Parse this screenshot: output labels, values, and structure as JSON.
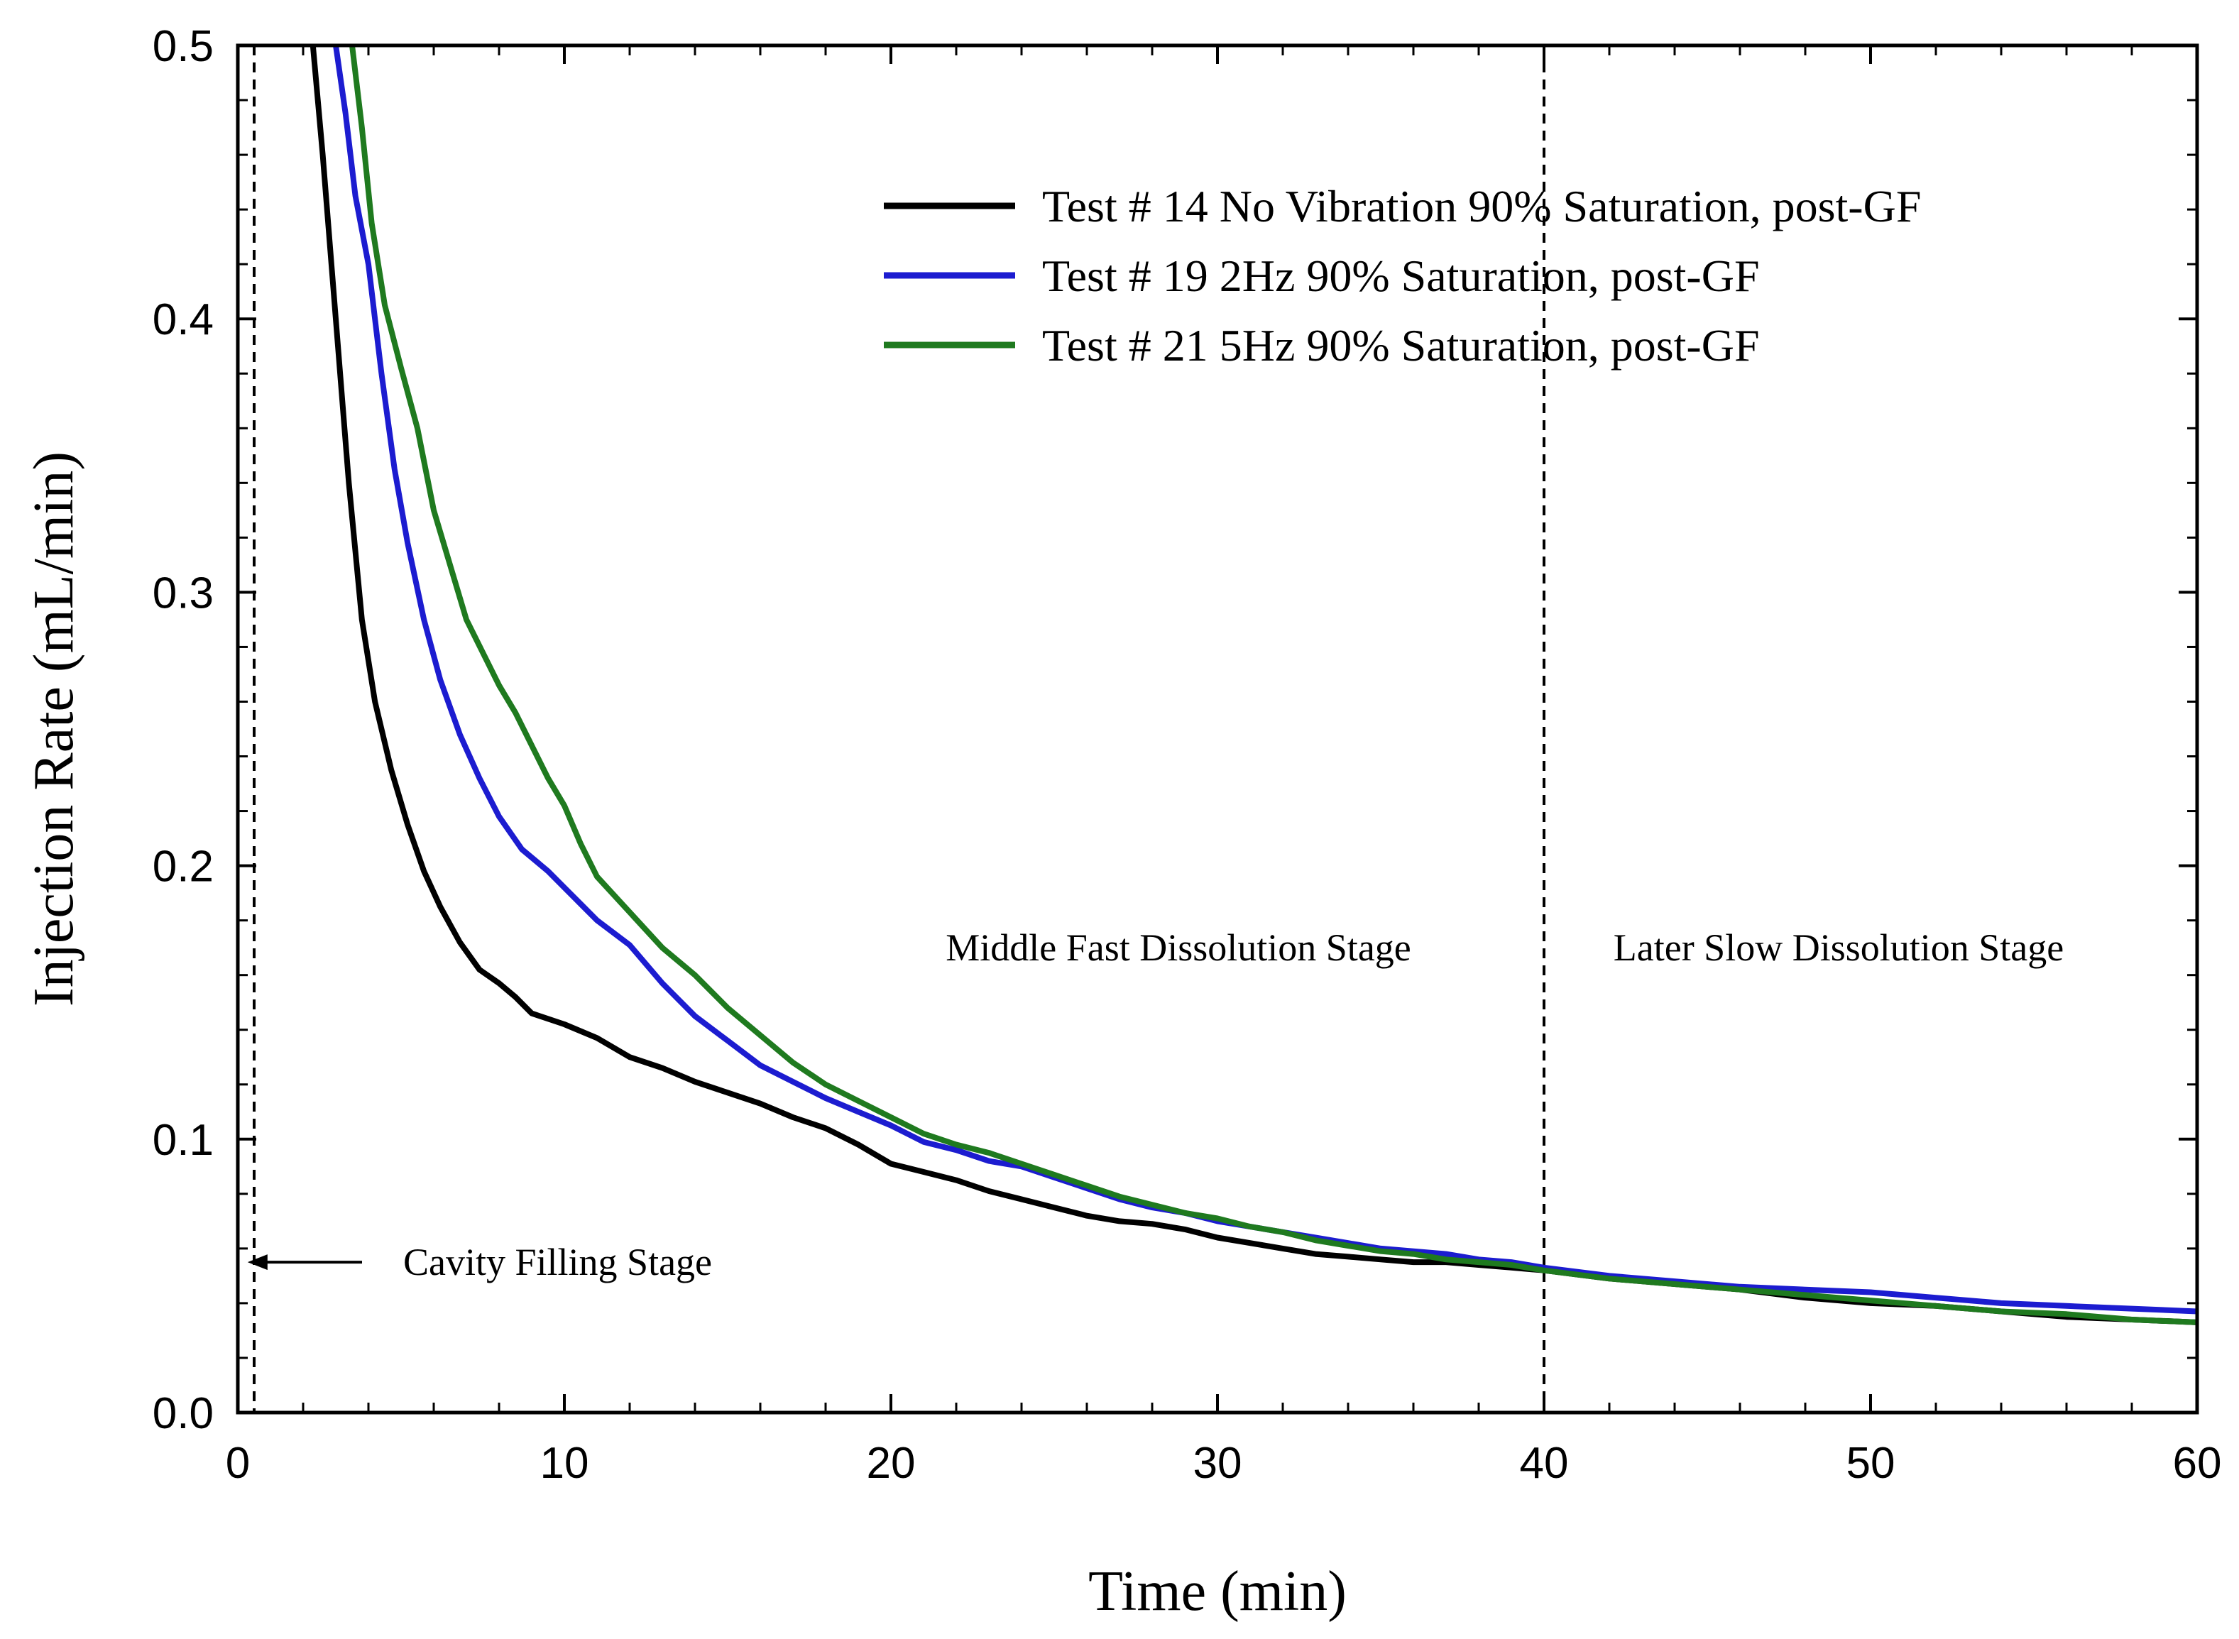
{
  "chart_data": {
    "type": "line",
    "title": "",
    "xlabel": "Time (min)",
    "ylabel": "Injection Rate (mL/min)",
    "xlim": [
      0,
      60
    ],
    "ylim": [
      0,
      0.5
    ],
    "x_ticks": [
      0,
      10,
      20,
      30,
      40,
      50,
      60
    ],
    "x_tick_labels": [
      "0",
      "10",
      "20",
      "30",
      "40",
      "50",
      "60"
    ],
    "y_ticks": [
      0,
      0.1,
      0.2,
      0.3,
      0.4,
      0.5
    ],
    "y_tick_labels": [
      "0.0",
      "0.1",
      "0.2",
      "0.3",
      "0.4",
      "0.5"
    ],
    "grid": false,
    "legend_position": "top-right",
    "vertical_lines": [
      0.5,
      40
    ],
    "annotations": {
      "cavity": "Cavity Filling Stage",
      "middle": "Middle Fast Dissolution Stage",
      "later": "Later Slow Dissolution Stage"
    },
    "series": [
      {
        "name": "Test # 14 No Vibration 90% Saturation, post-GF",
        "color": "#000000",
        "x": [
          2.3,
          2.6,
          3.0,
          3.4,
          3.8,
          4.2,
          4.7,
          5.2,
          5.7,
          6.2,
          6.8,
          7.4,
          8.0,
          8.5,
          9.0,
          10,
          11,
          12,
          13,
          14,
          15,
          16,
          17,
          18,
          19,
          20,
          21,
          22,
          23,
          24,
          25,
          26,
          27,
          28,
          29,
          30,
          31,
          32,
          33,
          34,
          35,
          36,
          37,
          38,
          39,
          40,
          42,
          44,
          46,
          48,
          50,
          52,
          54,
          56,
          58,
          60
        ],
        "y": [
          0.5,
          0.46,
          0.4,
          0.34,
          0.29,
          0.26,
          0.235,
          0.215,
          0.198,
          0.185,
          0.172,
          0.162,
          0.157,
          0.152,
          0.146,
          0.142,
          0.137,
          0.13,
          0.126,
          0.121,
          0.117,
          0.113,
          0.108,
          0.104,
          0.098,
          0.091,
          0.088,
          0.085,
          0.081,
          0.078,
          0.075,
          0.072,
          0.07,
          0.069,
          0.067,
          0.064,
          0.062,
          0.06,
          0.058,
          0.057,
          0.056,
          0.055,
          0.055,
          0.054,
          0.053,
          0.052,
          0.049,
          0.047,
          0.045,
          0.042,
          0.04,
          0.039,
          0.037,
          0.035,
          0.034,
          0.033
        ]
      },
      {
        "name": "Test # 19 2Hz 90% Saturation, post-GF",
        "color": "#1c1cd0",
        "x": [
          3.0,
          3.3,
          3.6,
          4.0,
          4.4,
          4.8,
          5.2,
          5.7,
          6.2,
          6.8,
          7.4,
          8.0,
          8.7,
          9.5,
          10,
          10.5,
          11,
          12,
          13,
          14,
          15,
          16,
          17,
          18,
          19,
          20,
          21,
          22,
          23,
          24,
          25,
          26,
          27,
          28,
          29,
          30,
          31,
          32,
          33,
          34,
          35,
          36,
          37,
          38,
          39,
          40,
          42,
          44,
          46,
          48,
          50,
          52,
          54,
          56,
          58,
          60
        ],
        "y": [
          0.5,
          0.475,
          0.445,
          0.42,
          0.38,
          0.345,
          0.318,
          0.29,
          0.268,
          0.248,
          0.232,
          0.218,
          0.206,
          0.198,
          0.192,
          0.186,
          0.18,
          0.171,
          0.157,
          0.145,
          0.136,
          0.127,
          0.121,
          0.115,
          0.11,
          0.105,
          0.099,
          0.096,
          0.092,
          0.09,
          0.086,
          0.082,
          0.078,
          0.075,
          0.073,
          0.07,
          0.068,
          0.066,
          0.064,
          0.062,
          0.06,
          0.059,
          0.058,
          0.056,
          0.055,
          0.053,
          0.05,
          0.048,
          0.046,
          0.045,
          0.044,
          0.042,
          0.04,
          0.039,
          0.038,
          0.037
        ]
      },
      {
        "name": "Test # 21 5Hz 90% Saturation, post-GF",
        "color": "#1f7a1f",
        "x": [
          3.5,
          3.8,
          4.1,
          4.5,
          5.0,
          5.5,
          6.0,
          6.5,
          7.0,
          7.5,
          8.0,
          8.5,
          9.0,
          9.5,
          10,
          10.5,
          11,
          12,
          13,
          14,
          15,
          16,
          17,
          18,
          19,
          20,
          21,
          22,
          23,
          24,
          25,
          26,
          27,
          28,
          29,
          30,
          31,
          32,
          33,
          34,
          35,
          36,
          37,
          38,
          39,
          40,
          42,
          44,
          46,
          48,
          50,
          52,
          54,
          56,
          58,
          60
        ],
        "y": [
          0.5,
          0.47,
          0.435,
          0.405,
          0.382,
          0.36,
          0.33,
          0.31,
          0.29,
          0.278,
          0.266,
          0.256,
          0.244,
          0.232,
          0.222,
          0.208,
          0.196,
          0.183,
          0.17,
          0.16,
          0.148,
          0.138,
          0.128,
          0.12,
          0.114,
          0.108,
          0.102,
          0.098,
          0.095,
          0.091,
          0.087,
          0.083,
          0.079,
          0.076,
          0.073,
          0.071,
          0.068,
          0.066,
          0.063,
          0.061,
          0.059,
          0.058,
          0.056,
          0.055,
          0.054,
          0.052,
          0.049,
          0.047,
          0.045,
          0.043,
          0.041,
          0.039,
          0.037,
          0.036,
          0.034,
          0.033
        ]
      }
    ]
  }
}
